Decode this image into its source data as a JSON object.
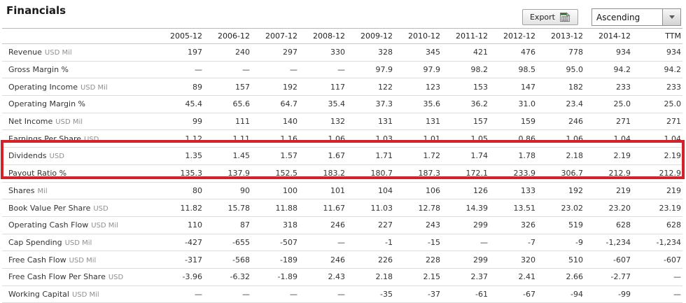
{
  "title": "Financials",
  "toolbar": {
    "export_label": "Export",
    "export_icon": "excel-export-icon",
    "sort_dropdown_value": "Ascending",
    "sort_dropdown_arrow_icon": "chevron-down-icon"
  },
  "colors": {
    "highlight_border": "#d2232a",
    "export_icon_green": "#1e7e1e",
    "unit_text_gray": "#8f8f8f"
  },
  "table": {
    "columns": [
      "2005-12",
      "2006-12",
      "2007-12",
      "2008-12",
      "2009-12",
      "2010-12",
      "2011-12",
      "2012-12",
      "2013-12",
      "2014-12",
      "TTM"
    ],
    "rows": [
      {
        "label": "Revenue",
        "unit": "USD Mil",
        "values": [
          "197",
          "240",
          "297",
          "330",
          "328",
          "345",
          "421",
          "476",
          "778",
          "934",
          "934"
        ]
      },
      {
        "label": "Gross Margin %",
        "unit": "",
        "values": [
          "—",
          "—",
          "—",
          "—",
          "97.9",
          "97.9",
          "98.2",
          "98.5",
          "95.0",
          "94.2",
          "94.2"
        ]
      },
      {
        "label": "Operating Income",
        "unit": "USD Mil",
        "values": [
          "89",
          "157",
          "192",
          "117",
          "122",
          "123",
          "153",
          "147",
          "182",
          "233",
          "233"
        ]
      },
      {
        "label": "Operating Margin %",
        "unit": "",
        "values": [
          "45.4",
          "65.6",
          "64.7",
          "35.4",
          "37.3",
          "35.6",
          "36.2",
          "31.0",
          "23.4",
          "25.0",
          "25.0"
        ]
      },
      {
        "label": "Net Income",
        "unit": "USD Mil",
        "values": [
          "99",
          "111",
          "140",
          "132",
          "131",
          "131",
          "157",
          "159",
          "246",
          "271",
          "271"
        ]
      },
      {
        "label": "Earnings Per Share",
        "unit": "USD",
        "values": [
          "1.12",
          "1.11",
          "1.16",
          "1.06",
          "1.03",
          "1.01",
          "1.05",
          "0.86",
          "1.06",
          "1.04",
          "1.04"
        ]
      },
      {
        "label": "Dividends",
        "unit": "USD",
        "values": [
          "1.35",
          "1.45",
          "1.57",
          "1.67",
          "1.71",
          "1.72",
          "1.74",
          "1.78",
          "2.18",
          "2.19",
          "2.19"
        ]
      },
      {
        "label": "Payout Ratio %",
        "unit": "",
        "values": [
          "135.3",
          "137.9",
          "152.5",
          "183.2",
          "180.7",
          "187.3",
          "172.1",
          "233.9",
          "306.7",
          "212.9",
          "212.9"
        ]
      },
      {
        "label": "Shares",
        "unit": "Mil",
        "values": [
          "80",
          "90",
          "100",
          "101",
          "104",
          "106",
          "126",
          "133",
          "192",
          "219",
          "219"
        ]
      },
      {
        "label": "Book Value Per Share",
        "unit": "USD",
        "values": [
          "11.82",
          "15.78",
          "11.88",
          "11.67",
          "11.03",
          "12.78",
          "14.39",
          "13.51",
          "23.02",
          "23.20",
          "23.19"
        ]
      },
      {
        "label": "Operating Cash Flow",
        "unit": "USD Mil",
        "values": [
          "110",
          "87",
          "318",
          "246",
          "227",
          "243",
          "299",
          "326",
          "519",
          "628",
          "628"
        ]
      },
      {
        "label": "Cap Spending",
        "unit": "USD Mil",
        "values": [
          "-427",
          "-655",
          "-507",
          "—",
          "-1",
          "-15",
          "—",
          "-7",
          "-9",
          "-1,234",
          "-1,234"
        ]
      },
      {
        "label": "Free Cash Flow",
        "unit": "USD Mil",
        "values": [
          "-317",
          "-568",
          "-189",
          "246",
          "226",
          "228",
          "299",
          "320",
          "510",
          "-607",
          "-607"
        ]
      },
      {
        "label": "Free Cash Flow Per Share",
        "unit": "USD",
        "values": [
          "-3.96",
          "-6.32",
          "-1.89",
          "2.43",
          "2.18",
          "2.15",
          "2.37",
          "2.41",
          "2.66",
          "-2.77",
          "—"
        ]
      },
      {
        "label": "Working Capital",
        "unit": "USD Mil",
        "values": [
          "—",
          "—",
          "—",
          "—",
          "-35",
          "-37",
          "-61",
          "-67",
          "-94",
          "-99",
          "—"
        ]
      }
    ]
  },
  "highlight": {
    "row_labels": [
      "Dividends",
      "Payout Ratio %"
    ]
  }
}
